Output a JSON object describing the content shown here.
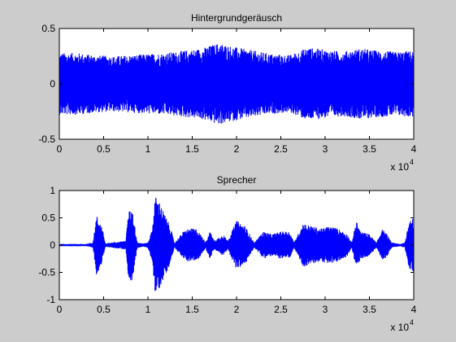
{
  "chart_data": [
    {
      "type": "line",
      "title": "Hintergrundgeräusch",
      "xlim": [
        0,
        40000
      ],
      "ylim": [
        -0.5,
        0.5
      ],
      "x_ticks": [
        0,
        0.5,
        1,
        1.5,
        2,
        2.5,
        3,
        3.5,
        4
      ],
      "x_tick_labels": [
        "0",
        "0.5",
        "1",
        "1.5",
        "2",
        "2.5",
        "3",
        "3.5",
        "4"
      ],
      "x_multiplier": "x 10",
      "x_multiplier_exp": "4",
      "y_ticks": [
        -0.5,
        0,
        0.5
      ],
      "y_tick_labels": [
        "-0.5",
        "0",
        "0.5"
      ],
      "series": [
        {
          "color": "#0000ff",
          "num_samples": 40000,
          "envelope_x": [
            0,
            2000,
            4000,
            6000,
            8000,
            10000,
            12000,
            14000,
            16000,
            18000,
            20000,
            22000,
            24000,
            26000,
            28000,
            30000,
            32000,
            34000,
            36000,
            38000,
            40000
          ],
          "envelope_amplitude": [
            0.28,
            0.28,
            0.26,
            0.25,
            0.26,
            0.27,
            0.28,
            0.3,
            0.32,
            0.37,
            0.33,
            0.3,
            0.27,
            0.26,
            0.33,
            0.31,
            0.29,
            0.32,
            0.3,
            0.29,
            0.3
          ]
        }
      ]
    },
    {
      "type": "line",
      "title": "Sprecher",
      "xlim": [
        0,
        40000
      ],
      "ylim": [
        -1,
        1
      ],
      "x_ticks": [
        0,
        0.5,
        1,
        1.5,
        2,
        2.5,
        3,
        3.5,
        4
      ],
      "x_tick_labels": [
        "0",
        "0.5",
        "1",
        "1.5",
        "2",
        "2.5",
        "3",
        "3.5",
        "4"
      ],
      "x_multiplier": "x 10",
      "x_multiplier_exp": "4",
      "y_ticks": [
        -1,
        -0.5,
        0,
        0.5,
        1
      ],
      "y_tick_labels": [
        "-1",
        "-0.5",
        "0",
        "0.5",
        "1"
      ],
      "series": [
        {
          "color": "#0000ff",
          "num_samples": 40000,
          "envelope_x": [
            0,
            3000,
            3800,
            4200,
            4800,
            5200,
            6000,
            7500,
            7800,
            8200,
            8800,
            9500,
            10000,
            10500,
            10800,
            11300,
            11800,
            12500,
            13000,
            14000,
            14500,
            15500,
            16500,
            17000,
            17500,
            18500,
            19000,
            20000,
            21000,
            22000,
            23000,
            24000,
            25000,
            26000,
            26500,
            27500,
            28500,
            29500,
            30500,
            31500,
            32500,
            33000,
            33500,
            34000,
            35000,
            35800,
            36500,
            37000,
            37500,
            38500,
            39000,
            39500,
            40000
          ],
          "envelope_amplitude": [
            0.02,
            0.02,
            0.05,
            0.55,
            0.35,
            0.03,
            0.05,
            0.08,
            0.6,
            0.7,
            0.05,
            0.03,
            0.05,
            0.3,
            0.9,
            0.8,
            0.6,
            0.35,
            0.04,
            0.25,
            0.3,
            0.3,
            0.06,
            0.25,
            0.08,
            0.2,
            0.08,
            0.45,
            0.35,
            0.04,
            0.25,
            0.2,
            0.25,
            0.25,
            0.05,
            0.4,
            0.35,
            0.3,
            0.35,
            0.3,
            0.2,
            0.04,
            0.45,
            0.25,
            0.2,
            0.05,
            0.3,
            0.2,
            0.05,
            0.02,
            0.05,
            0.45,
            0.5
          ]
        }
      ]
    }
  ]
}
